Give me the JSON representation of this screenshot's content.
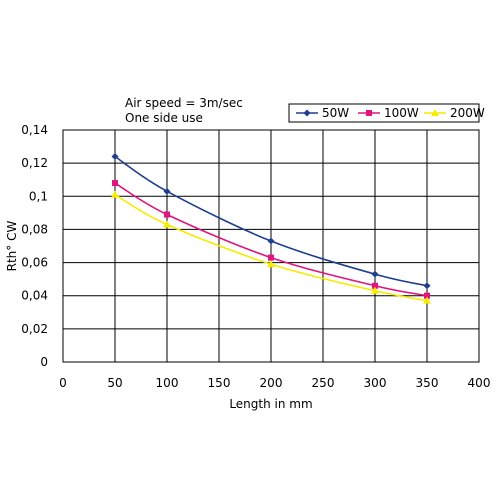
{
  "chart_data": {
    "type": "line",
    "title": "",
    "annotations": [
      "Air speed = 3m/sec",
      "One side use"
    ],
    "xlabel": "Length in mm",
    "ylabel": "Rth° CW",
    "xlim": [
      0,
      400
    ],
    "ylim": [
      0,
      0.14
    ],
    "x_ticks": [
      "0",
      "50",
      "100",
      "150",
      "200",
      "250",
      "300",
      "350",
      "400"
    ],
    "y_ticks": [
      "0",
      "0,02",
      "0,04",
      "0,06",
      "0,08",
      "0,1",
      "0,12",
      "0,14"
    ],
    "grid": true,
    "legend_position": "top-right",
    "series": [
      {
        "name": "50W",
        "color": "#1f3f8f",
        "marker": "diamond",
        "x": [
          50,
          100,
          200,
          300,
          350
        ],
        "values": [
          0.124,
          0.103,
          0.073,
          0.053,
          0.046
        ]
      },
      {
        "name": "100W",
        "color": "#e0157d",
        "marker": "square",
        "x": [
          50,
          100,
          200,
          300,
          350
        ],
        "values": [
          0.108,
          0.089,
          0.063,
          0.046,
          0.04
        ]
      },
      {
        "name": "200W",
        "color": "#f5ec00",
        "marker": "triangle",
        "x": [
          50,
          100,
          200,
          300,
          350
        ],
        "values": [
          0.101,
          0.083,
          0.059,
          0.043,
          0.037
        ]
      }
    ]
  }
}
